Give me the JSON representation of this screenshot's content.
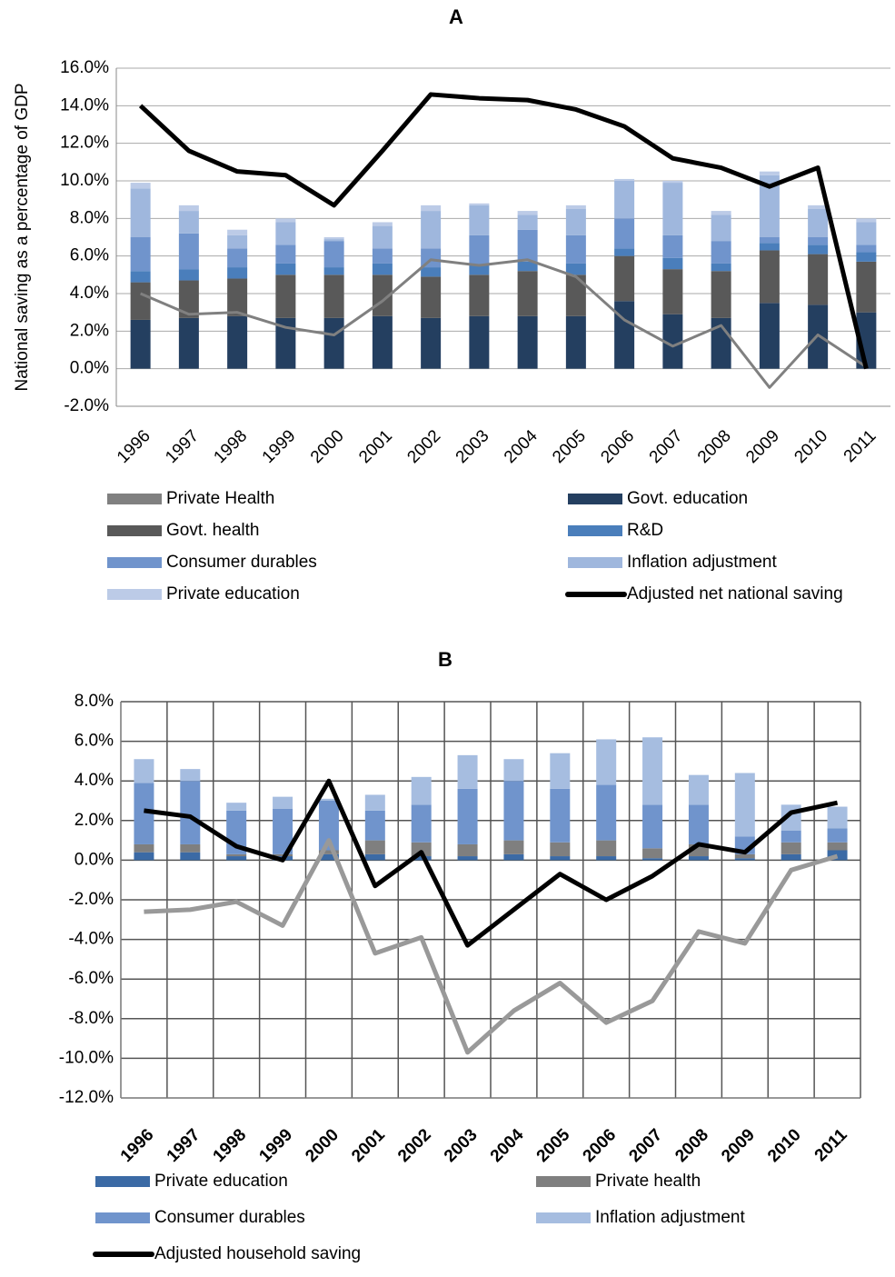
{
  "chart_data": [
    {
      "type": "combo",
      "title": "A",
      "y_label": "National saving as a percentage of GDP",
      "categories": [
        "1996",
        "1997",
        "1998",
        "1999",
        "2000",
        "2001",
        "2002",
        "2003",
        "2004",
        "2005",
        "2006",
        "2007",
        "2008",
        "2009",
        "2010",
        "2011"
      ],
      "ylim": [
        -2,
        16
      ],
      "yticks": [
        {
          "value": -2,
          "label": "-2.0%"
        },
        {
          "value": 0,
          "label": "0.0%"
        },
        {
          "value": 2,
          "label": "2.0%"
        },
        {
          "value": 4,
          "label": "4.0%"
        },
        {
          "value": 6,
          "label": "6.0%"
        },
        {
          "value": 8,
          "label": "8.0%"
        },
        {
          "value": 10,
          "label": "10.0%"
        },
        {
          "value": 12,
          "label": "12.0%"
        },
        {
          "value": 14,
          "label": "14.0%"
        },
        {
          "value": 16,
          "label": "16.0%"
        }
      ],
      "grid": true,
      "vgrid": false,
      "series": [
        {
          "name": "Private Health",
          "type": "line",
          "color": "#808080",
          "line_width": 3,
          "values": [
            4.0,
            2.9,
            3.0,
            2.2,
            1.8,
            3.6,
            5.8,
            5.5,
            5.8,
            4.9,
            2.6,
            1.2,
            2.3,
            -1.0,
            1.8,
            0.1
          ]
        },
        {
          "name": "Govt. education",
          "type": "bar",
          "color": "#243f60",
          "values": [
            2.6,
            2.7,
            2.8,
            2.7,
            2.7,
            2.8,
            2.7,
            2.8,
            2.8,
            2.8,
            3.6,
            2.9,
            2.7,
            3.5,
            3.4,
            3.0
          ]
        },
        {
          "name": "Govt. health",
          "type": "bar",
          "color": "#595959",
          "values": [
            2.0,
            2.0,
            2.0,
            2.3,
            2.3,
            2.2,
            2.2,
            2.2,
            2.4,
            2.2,
            2.4,
            2.4,
            2.5,
            2.8,
            2.7,
            2.7
          ]
        },
        {
          "name": "R&D",
          "type": "bar",
          "color": "#4a7ebb",
          "values": [
            0.6,
            0.6,
            0.6,
            0.6,
            0.4,
            0.6,
            0.5,
            0.5,
            0.5,
            0.6,
            0.4,
            0.6,
            0.4,
            0.4,
            0.5,
            0.5
          ]
        },
        {
          "name": "Consumer durables",
          "type": "bar",
          "color": "#7094cc",
          "values": [
            1.8,
            1.9,
            1.0,
            1.0,
            1.4,
            0.8,
            1.0,
            1.6,
            1.7,
            1.5,
            1.6,
            1.2,
            1.2,
            0.3,
            0.4,
            0.4
          ]
        },
        {
          "name": "Inflation adjustment",
          "type": "bar",
          "color": "#9fb7dd",
          "values": [
            2.6,
            1.2,
            0.7,
            1.2,
            0.1,
            1.2,
            2.0,
            1.6,
            0.8,
            1.4,
            2.0,
            2.8,
            1.4,
            3.3,
            1.5,
            1.2
          ]
        },
        {
          "name": "Private education",
          "type": "bar",
          "color": "#bccbe7",
          "values": [
            0.3,
            0.3,
            0.3,
            0.2,
            0.1,
            0.2,
            0.3,
            0.1,
            0.2,
            0.2,
            0.1,
            0.1,
            0.2,
            0.2,
            0.2,
            0.2
          ]
        },
        {
          "name": "Adjusted net national saving",
          "type": "line",
          "color": "#000000",
          "line_width": 5,
          "values": [
            14.0,
            11.6,
            10.5,
            10.3,
            8.7,
            11.6,
            14.6,
            14.4,
            14.3,
            13.8,
            12.9,
            11.2,
            10.7,
            9.7,
            10.7,
            0.0
          ]
        }
      ]
    },
    {
      "type": "combo",
      "title": "B",
      "categories": [
        "1996",
        "1997",
        "1998",
        "1999",
        "2000",
        "2001",
        "2002",
        "2003",
        "2004",
        "2005",
        "2006",
        "2007",
        "2008",
        "2009",
        "2010",
        "2011"
      ],
      "ylim": [
        -12,
        8
      ],
      "yticks": [
        {
          "value": -12,
          "label": "-12.0%"
        },
        {
          "value": -10,
          "label": "-10.0%"
        },
        {
          "value": -8,
          "label": "-8.0%"
        },
        {
          "value": -6,
          "label": "-6.0%"
        },
        {
          "value": -4,
          "label": "-4.0%"
        },
        {
          "value": -2,
          "label": "-2.0%"
        },
        {
          "value": 0,
          "label": "0.0%"
        },
        {
          "value": 2,
          "label": "2.0%"
        },
        {
          "value": 4,
          "label": "4.0%"
        },
        {
          "value": 6,
          "label": "6.0%"
        },
        {
          "value": 8,
          "label": "8.0%"
        }
      ],
      "grid": true,
      "vgrid": true,
      "series": [
        {
          "name": "Private education",
          "type": "bar",
          "color": "#3b6aa5",
          "values": [
            0.4,
            0.4,
            0.2,
            0.2,
            0.3,
            0.3,
            0.2,
            0.2,
            0.3,
            0.2,
            0.2,
            0.1,
            0.2,
            0.1,
            0.3,
            0.5
          ]
        },
        {
          "name": "Private health",
          "type": "bar",
          "color": "#7f7f7f",
          "values": [
            0.4,
            0.4,
            0.1,
            0.1,
            0.2,
            0.7,
            0.7,
            0.6,
            0.7,
            0.7,
            0.8,
            0.5,
            0.6,
            0.2,
            0.6,
            0.4
          ]
        },
        {
          "name": "Consumer durables",
          "type": "bar",
          "color": "#7094cc",
          "values": [
            3.1,
            3.2,
            2.2,
            2.3,
            2.5,
            1.5,
            1.9,
            2.8,
            3.0,
            2.7,
            2.8,
            2.2,
            2.0,
            0.9,
            0.6,
            0.7
          ]
        },
        {
          "name": "Inflation adjustment",
          "type": "bar",
          "color": "#a6bde0",
          "values": [
            1.2,
            0.6,
            0.4,
            0.6,
            0.1,
            0.8,
            1.4,
            1.7,
            1.1,
            1.8,
            2.3,
            3.4,
            1.5,
            3.2,
            1.3,
            1.1
          ]
        },
        {
          "name": "Adjusted household saving",
          "type": "line",
          "color": "#000000",
          "line_width": 5,
          "values": [
            2.5,
            2.2,
            0.7,
            0.0,
            4.0,
            -1.3,
            0.4,
            -4.3,
            -2.5,
            -0.7,
            -2.0,
            -0.8,
            0.8,
            0.4,
            2.4,
            2.9
          ]
        },
        {
          "type": "line",
          "color": "#999999",
          "line_width": 5,
          "values": [
            -2.6,
            -2.5,
            -2.1,
            -3.3,
            1.0,
            -4.7,
            -3.9,
            -9.7,
            -7.6,
            -6.2,
            -8.2,
            -7.1,
            -3.6,
            -4.2,
            -0.5,
            0.2
          ]
        }
      ]
    }
  ]
}
